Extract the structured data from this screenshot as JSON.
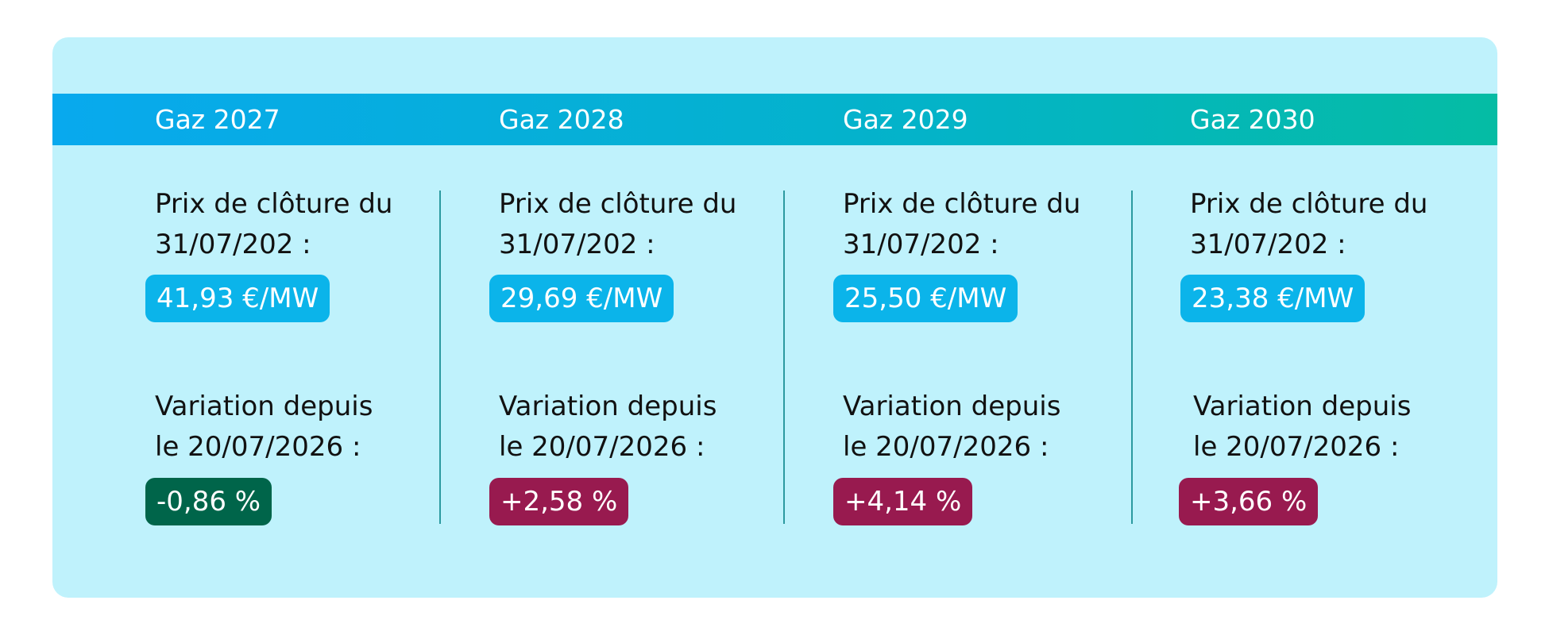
{
  "columns": [
    {
      "title": "Gaz 2027",
      "price_label_line1": "Prix de clôture du",
      "price_label_line2": "31/07/202 :",
      "price": "41,93 €/MW",
      "variation_label_line1": "Variation depuis",
      "variation_label_line2": "le 20/07/2026 :",
      "variation": "-0,86 %",
      "variation_color": "#00654a"
    },
    {
      "title": "Gaz 2028",
      "price_label_line1": "Prix de clôture du",
      "price_label_line2": "31/07/202 :",
      "price": "29,69 €/MW",
      "variation_label_line1": "Variation depuis",
      "variation_label_line2": "le 20/07/2026 :",
      "variation": "+2,58 %",
      "variation_color": "#981a4f"
    },
    {
      "title": "Gaz 2029",
      "price_label_line1": "Prix de clôture du",
      "price_label_line2": "31/07/202 :",
      "price": "25,50 €/MW",
      "variation_label_line1": "Variation depuis",
      "variation_label_line2": "le 20/07/2026 :",
      "variation": "+4,14 %",
      "variation_color": "#981a4f"
    },
    {
      "title": "Gaz 2030",
      "price_label_line1": "Prix de clôture du",
      "price_label_line2": "31/07/202 :",
      "price": "23,38 €/MW",
      "variation_label_line1": "Variation depuis",
      "variation_label_line2": "le 20/07/2026 :",
      "variation": "+3,66 %",
      "variation_color": "#981a4f"
    }
  ],
  "colors": {
    "card_background": "#bff2fc",
    "header_gradient_start": "#08a9ee",
    "header_gradient_end": "#05bca4",
    "price_badge": "#0bb4ea",
    "divider": "#2c9aa0"
  }
}
